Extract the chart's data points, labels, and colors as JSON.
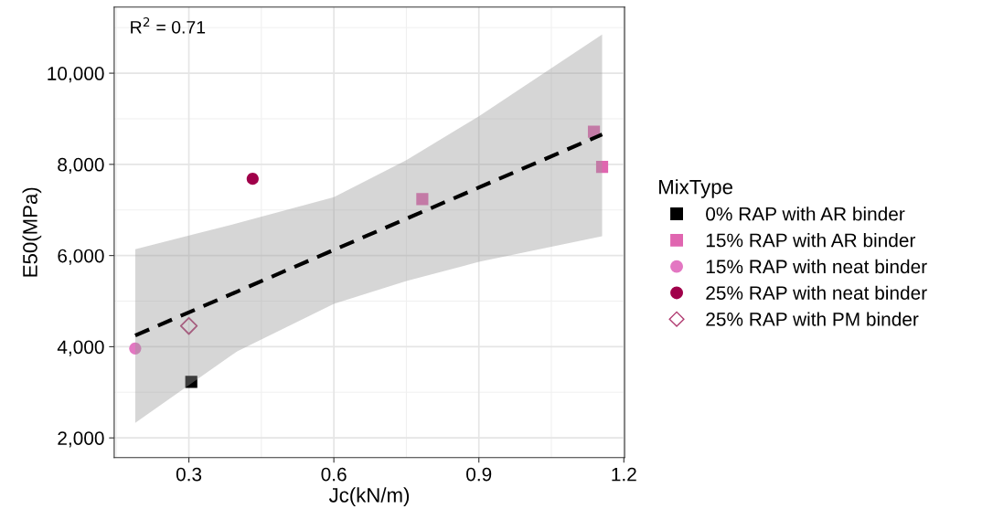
{
  "chart_data": {
    "type": "scatter",
    "xlabel": "Jc(kN/m)",
    "ylabel": "E50(MPa)",
    "legend_title": "MixType",
    "legend": "right",
    "annotations": [
      "R$^{2}$ = 0.71"
    ],
    "xlim": [
      0.1455,
      1.2015
    ],
    "xticks": [
      0.3,
      0.6,
      0.9,
      1.2
    ],
    "ylim": [
      1568,
      11449
    ],
    "yticks": [
      {
        "value": 2000,
        "label": "2,000"
      },
      {
        "value": 4000,
        "label": "4,000"
      },
      {
        "value": 6000,
        "label": "6,000"
      },
      {
        "value": 8000,
        "label": "8,000"
      },
      {
        "value": 10000,
        "label": "10,000"
      }
    ],
    "grid": true,
    "series": [
      {
        "name": "0% RAP with AR binder",
        "color": "#000000",
        "marker": "square",
        "x": [
          0.305
        ],
        "values": [
          3229
        ]
      },
      {
        "name": "15% RAP with AR binder",
        "color": "#e066b0",
        "marker": "square",
        "x": [
          0.783,
          1.138,
          1.155
        ],
        "values": [
          7237,
          8717,
          7946
        ]
      },
      {
        "name": "15% RAP with neat binder",
        "color": "#e377c2",
        "marker": "circle",
        "x": [
          0.189
        ],
        "values": [
          3961
        ]
      },
      {
        "name": "25% RAP with neat binder",
        "color": "#a0004a",
        "marker": "circle",
        "x": [
          0.432
        ],
        "values": [
          7684
        ]
      },
      {
        "name": "25% RAP with PM binder",
        "color": "#b03a70",
        "marker": "diamond",
        "x": [
          0.3
        ],
        "values": [
          4455
        ]
      },
      {
        "type": "line",
        "color": "#000000",
        "line_style": "dashed",
        "x": [
          0.189,
          0.4,
          0.6,
          0.75,
          0.9,
          1.155
        ],
        "values": [
          4247,
          5210,
          6123,
          6808,
          7492,
          8656
        ],
        "lower": [
          2331,
          3900,
          4940,
          5440,
          5861,
          6424
        ],
        "upper": [
          6139,
          6709,
          7283,
          8093,
          9056,
          10848
        ]
      }
    ]
  }
}
